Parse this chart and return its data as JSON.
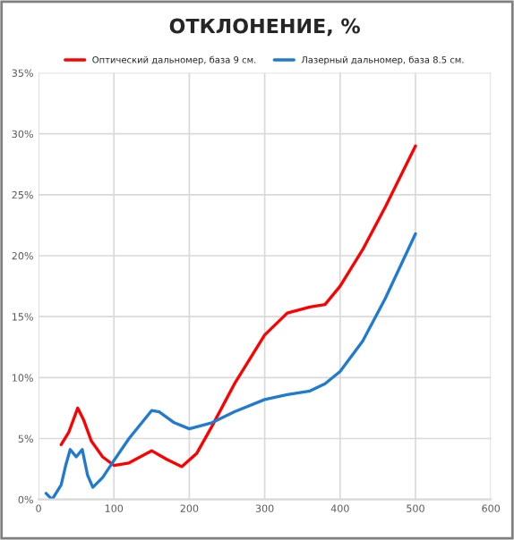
{
  "chart_data": {
    "type": "line",
    "title": "ОТКЛОНЕНИЕ, %",
    "series": [
      {
        "name": "Оптический дальномер, база 9 см.",
        "color": "#ff0000",
        "x": [
          30,
          40,
          52,
          60,
          70,
          85,
          100,
          120,
          150,
          170,
          190,
          210,
          230,
          260,
          300,
          330,
          360,
          380,
          400,
          430,
          460,
          500
        ],
        "values": [
          4.5,
          5.5,
          7.5,
          6.5,
          4.8,
          3.5,
          2.8,
          3.0,
          4.0,
          3.3,
          2.7,
          3.8,
          6.0,
          9.5,
          13.5,
          15.3,
          15.8,
          16.0,
          17.5,
          20.5,
          24.0,
          29.0
        ]
      },
      {
        "name": "Лазерный дальномер, база 8.5 см.",
        "color": "#1f7bd1",
        "x": [
          10,
          18,
          30,
          36,
          42,
          50,
          58,
          65,
          72,
          85,
          100,
          120,
          150,
          160,
          180,
          200,
          230,
          260,
          300,
          330,
          360,
          380,
          400,
          430,
          460,
          500
        ],
        "values": [
          0.5,
          0.0,
          1.2,
          2.8,
          4.1,
          3.5,
          4.1,
          2.0,
          1.0,
          1.8,
          3.2,
          5.0,
          7.3,
          7.2,
          6.3,
          5.8,
          6.3,
          7.2,
          8.2,
          8.6,
          8.9,
          9.5,
          10.5,
          13.0,
          16.5,
          21.8
        ]
      }
    ],
    "xlim": [
      0,
      600
    ],
    "xticks": [
      0,
      100,
      200,
      300,
      400,
      500,
      600
    ],
    "ylim": [
      0,
      35
    ],
    "yticks": [
      {
        "value": 0,
        "label": "0%"
      },
      {
        "value": 5,
        "label": "5%"
      },
      {
        "value": 10,
        "label": "10%"
      },
      {
        "value": 15,
        "label": "15%"
      },
      {
        "value": 20,
        "label": "20%"
      },
      {
        "value": 25,
        "label": "25%"
      },
      {
        "value": 30,
        "label": "30%"
      },
      {
        "value": 35,
        "label": "35%"
      }
    ],
    "grid": true,
    "legend": "top",
    "marker": "none",
    "line_style": "solid"
  }
}
